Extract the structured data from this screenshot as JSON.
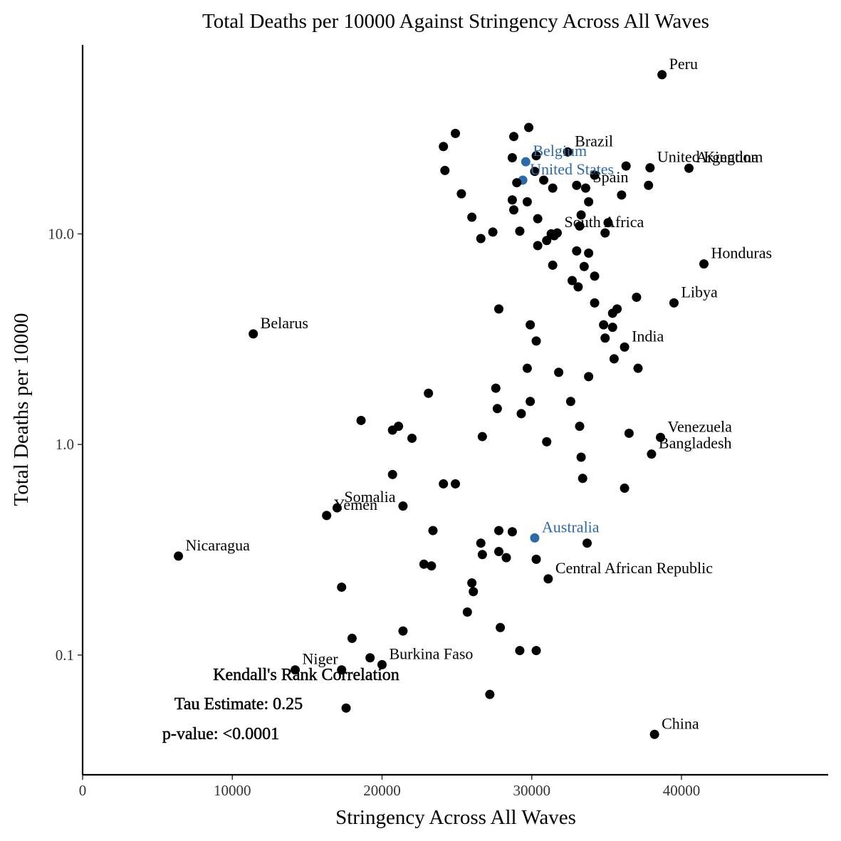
{
  "chart_data": {
    "type": "scatter",
    "title": "Total Deaths per 10000 Against Stringency Across All Waves",
    "xlabel": "Stringency Across All Waves",
    "ylabel": "Total Deaths per 10000",
    "xlim": [
      0,
      49800
    ],
    "ylim": [
      0.027,
      79
    ],
    "y_scale": "log",
    "x_ticks": [
      0,
      10000,
      20000,
      30000,
      40000
    ],
    "x_tick_labels": [
      "0",
      "10000",
      "20000",
      "30000",
      "40000"
    ],
    "y_ticks": [
      0.1,
      1.0,
      10.0
    ],
    "y_tick_labels": [
      "0.1",
      "1.0",
      "10.0"
    ],
    "grid": false,
    "legend": "none",
    "colors": {
      "default": "#000000",
      "highlight": "#2b6aa8"
    },
    "points": [
      {
        "x": 38700,
        "y": 57,
        "label": "Peru"
      },
      {
        "x": 29800,
        "y": 32
      },
      {
        "x": 24900,
        "y": 30
      },
      {
        "x": 28800,
        "y": 29
      },
      {
        "x": 24100,
        "y": 26
      },
      {
        "x": 32400,
        "y": 24.5,
        "label": "Brazil"
      },
      {
        "x": 30300,
        "y": 23.5
      },
      {
        "x": 28700,
        "y": 23
      },
      {
        "x": 29600,
        "y": 22,
        "label": "Belgium",
        "highlight": true
      },
      {
        "x": 40500,
        "y": 20.5,
        "label": "Argentina"
      },
      {
        "x": 37900,
        "y": 20.6,
        "label": "United Kingdom"
      },
      {
        "x": 36300,
        "y": 21
      },
      {
        "x": 24200,
        "y": 20
      },
      {
        "x": 30200,
        "y": 19.8
      },
      {
        "x": 34200,
        "y": 19
      },
      {
        "x": 29400,
        "y": 18,
        "label": "United States",
        "highlight": true
      },
      {
        "x": 30800,
        "y": 18
      },
      {
        "x": 29000,
        "y": 17.5
      },
      {
        "x": 33000,
        "y": 17
      },
      {
        "x": 33600,
        "y": 16.5,
        "label": "Spain"
      },
      {
        "x": 31400,
        "y": 16.5
      },
      {
        "x": 37800,
        "y": 17
      },
      {
        "x": 25300,
        "y": 15.5
      },
      {
        "x": 36000,
        "y": 15.3
      },
      {
        "x": 28700,
        "y": 14.5
      },
      {
        "x": 29700,
        "y": 14.2
      },
      {
        "x": 33800,
        "y": 14.2
      },
      {
        "x": 28800,
        "y": 13
      },
      {
        "x": 33300,
        "y": 12.3
      },
      {
        "x": 26000,
        "y": 12
      },
      {
        "x": 30400,
        "y": 11.8
      },
      {
        "x": 35100,
        "y": 11.3
      },
      {
        "x": 33200,
        "y": 10.9
      },
      {
        "x": 29200,
        "y": 10.3
      },
      {
        "x": 27400,
        "y": 10.2
      },
      {
        "x": 31700,
        "y": 10.1,
        "label": "South Africa"
      },
      {
        "x": 34900,
        "y": 10.1
      },
      {
        "x": 31300,
        "y": 10
      },
      {
        "x": 31500,
        "y": 9.8
      },
      {
        "x": 26600,
        "y": 9.5
      },
      {
        "x": 31000,
        "y": 9.3
      },
      {
        "x": 30400,
        "y": 8.8
      },
      {
        "x": 33000,
        "y": 8.3
      },
      {
        "x": 33800,
        "y": 8.1
      },
      {
        "x": 41500,
        "y": 7.2,
        "label": "Honduras"
      },
      {
        "x": 31400,
        "y": 7.1
      },
      {
        "x": 33500,
        "y": 7
      },
      {
        "x": 34200,
        "y": 6.3
      },
      {
        "x": 32700,
        "y": 6
      },
      {
        "x": 33100,
        "y": 5.6
      },
      {
        "x": 39500,
        "y": 4.7,
        "label": "Libya"
      },
      {
        "x": 37000,
        "y": 5
      },
      {
        "x": 34200,
        "y": 4.7
      },
      {
        "x": 35700,
        "y": 4.4
      },
      {
        "x": 35400,
        "y": 4.2
      },
      {
        "x": 27800,
        "y": 4.4
      },
      {
        "x": 29900,
        "y": 3.7
      },
      {
        "x": 34800,
        "y": 3.7
      },
      {
        "x": 35400,
        "y": 3.6
      },
      {
        "x": 11400,
        "y": 3.35,
        "label": "Belarus"
      },
      {
        "x": 34900,
        "y": 3.2
      },
      {
        "x": 30300,
        "y": 3.1
      },
      {
        "x": 36200,
        "y": 2.9,
        "label": "India"
      },
      {
        "x": 35500,
        "y": 2.55
      },
      {
        "x": 29700,
        "y": 2.3
      },
      {
        "x": 37100,
        "y": 2.3
      },
      {
        "x": 31800,
        "y": 2.2
      },
      {
        "x": 33800,
        "y": 2.1
      },
      {
        "x": 27600,
        "y": 1.85
      },
      {
        "x": 23100,
        "y": 1.75
      },
      {
        "x": 29900,
        "y": 1.6
      },
      {
        "x": 32600,
        "y": 1.6
      },
      {
        "x": 27700,
        "y": 1.48
      },
      {
        "x": 29300,
        "y": 1.4
      },
      {
        "x": 18600,
        "y": 1.3
      },
      {
        "x": 21100,
        "y": 1.22
      },
      {
        "x": 20700,
        "y": 1.17
      },
      {
        "x": 33200,
        "y": 1.22
      },
      {
        "x": 36500,
        "y": 1.13
      },
      {
        "x": 38600,
        "y": 1.08,
        "label": "Venezuela"
      },
      {
        "x": 22000,
        "y": 1.07
      },
      {
        "x": 26700,
        "y": 1.09
      },
      {
        "x": 31000,
        "y": 1.03
      },
      {
        "x": 38000,
        "y": 0.9,
        "label": "Bangladesh"
      },
      {
        "x": 33300,
        "y": 0.87
      },
      {
        "x": 20700,
        "y": 0.72
      },
      {
        "x": 33400,
        "y": 0.69
      },
      {
        "x": 24100,
        "y": 0.65
      },
      {
        "x": 24900,
        "y": 0.65
      },
      {
        "x": 36200,
        "y": 0.62
      },
      {
        "x": 17000,
        "y": 0.5,
        "label": "Somalia"
      },
      {
        "x": 16300,
        "y": 0.46,
        "label": "Yemen"
      },
      {
        "x": 21400,
        "y": 0.51
      },
      {
        "x": 23400,
        "y": 0.39
      },
      {
        "x": 27800,
        "y": 0.39
      },
      {
        "x": 28700,
        "y": 0.385
      },
      {
        "x": 30200,
        "y": 0.36,
        "label": "Australia",
        "highlight": true
      },
      {
        "x": 33700,
        "y": 0.34
      },
      {
        "x": 26600,
        "y": 0.34
      },
      {
        "x": 6400,
        "y": 0.295,
        "label": "Nicaragua"
      },
      {
        "x": 27800,
        "y": 0.31
      },
      {
        "x": 26700,
        "y": 0.3
      },
      {
        "x": 28300,
        "y": 0.29
      },
      {
        "x": 30300,
        "y": 0.285
      },
      {
        "x": 22800,
        "y": 0.27
      },
      {
        "x": 23300,
        "y": 0.265
      },
      {
        "x": 31100,
        "y": 0.23,
        "label": "Central African Republic"
      },
      {
        "x": 26000,
        "y": 0.22
      },
      {
        "x": 17300,
        "y": 0.21
      },
      {
        "x": 26100,
        "y": 0.2
      },
      {
        "x": 25700,
        "y": 0.16
      },
      {
        "x": 27900,
        "y": 0.135
      },
      {
        "x": 21400,
        "y": 0.13
      },
      {
        "x": 18000,
        "y": 0.12
      },
      {
        "x": 29200,
        "y": 0.105
      },
      {
        "x": 30300,
        "y": 0.105
      },
      {
        "x": 19200,
        "y": 0.097
      },
      {
        "x": 14200,
        "y": 0.085,
        "label": "Niger"
      },
      {
        "x": 17300,
        "y": 0.085
      },
      {
        "x": 20000,
        "y": 0.09,
        "label": "Burkina Faso"
      },
      {
        "x": 27200,
        "y": 0.065
      },
      {
        "x": 17600,
        "y": 0.056
      },
      {
        "x": 38200,
        "y": 0.042,
        "label": "China"
      }
    ],
    "annotations": [
      "Kendall's Rank Correlation",
      "Tau Estimate: 0.25",
      "p-value: <0.0001"
    ]
  }
}
